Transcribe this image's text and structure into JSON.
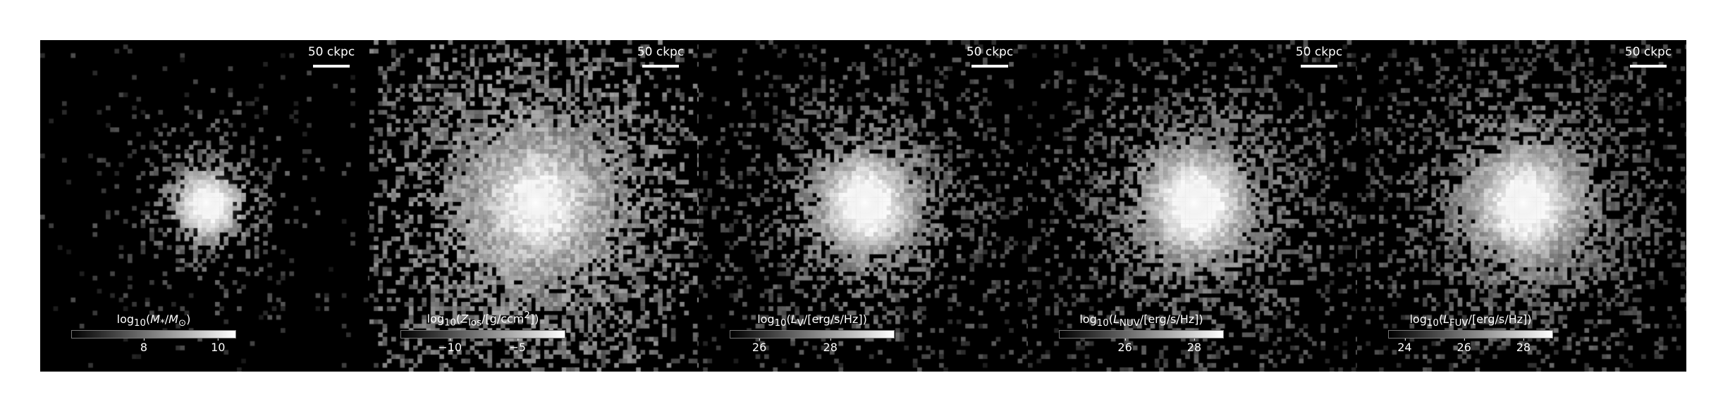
{
  "figure": {
    "panels": [
      {
        "name": "stellar-mass",
        "scalebar": "50 ckpc",
        "colorbar_label": "log10(M*/M⊙)",
        "colorbar_label_html": "log<sub>10</sub>(<i>M</i><sub>*</sub>/<i>M</i><sub>⊙</sub>)",
        "ticks": [
          "8",
          "10"
        ],
        "tick_fracs": [
          0.44,
          0.89
        ],
        "spread": 0.55,
        "density": 0.25,
        "core": 1.0
      },
      {
        "name": "metallicity",
        "scalebar": "50 ckpc",
        "colorbar_label": "log10(Zlos/[g/ccm^2])",
        "colorbar_label_html": "log<sub>10</sub>(<i>Z</i><sub>los</sub>/[g/ccm<sup>2</sup>])",
        "ticks": [
          "−10",
          "−5"
        ],
        "tick_fracs": [
          0.3,
          0.71
        ],
        "spread": 1.6,
        "density": 0.55,
        "core": 0.95
      },
      {
        "name": "v-band-luminosity",
        "scalebar": "50 ckpc",
        "colorbar_label": "log10(LV/[erg/s/Hz])",
        "colorbar_label_html": "log<sub>10</sub>(<i>L</i><sub>V</sub>/[erg/s/Hz])",
        "ticks": [
          "26",
          "28"
        ],
        "tick_fracs": [
          0.18,
          0.61
        ],
        "spread": 1.1,
        "density": 0.4,
        "core": 1.0
      },
      {
        "name": "nuv-luminosity",
        "scalebar": "50 ckpc",
        "colorbar_label": "log10(LNUV/[erg/s/Hz])",
        "colorbar_label_html": "log<sub>10</sub>(<i>L</i><sub>NUV</sub>/[erg/s/Hz])",
        "ticks": [
          "26",
          "28"
        ],
        "tick_fracs": [
          0.4,
          0.82
        ],
        "spread": 1.25,
        "density": 0.45,
        "core": 0.95
      },
      {
        "name": "fuv-luminosity",
        "scalebar": "50 ckpc",
        "colorbar_label": "log10(LFUV/[erg/s/Hz])",
        "colorbar_label_html": "log<sub>10</sub>(<i>L</i><sub>FUV</sub>/[erg/s/Hz])",
        "ticks": [
          "24",
          "26",
          "28"
        ],
        "tick_fracs": [
          0.1,
          0.46,
          0.82
        ],
        "spread": 1.25,
        "density": 0.48,
        "core": 0.95
      }
    ]
  }
}
